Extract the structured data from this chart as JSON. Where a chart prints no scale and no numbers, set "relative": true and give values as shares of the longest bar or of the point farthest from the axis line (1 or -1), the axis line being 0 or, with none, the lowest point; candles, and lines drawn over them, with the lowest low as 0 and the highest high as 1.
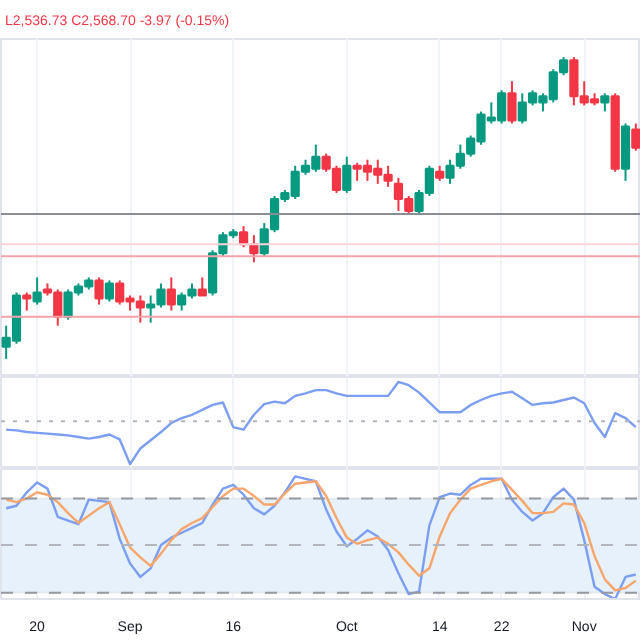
{
  "chart_data": [
    {
      "type": "candlestick",
      "relative": true,
      "title": "L2,536.73 C2,568.70 -3.97 (-0.15%)",
      "tick_labels": false,
      "grid": "x",
      "categories": [
        null,
        null,
        null,
        null,
        null,
        null,
        null,
        null,
        null,
        null,
        null,
        null,
        null,
        null,
        null,
        null,
        null,
        null,
        null,
        null,
        null,
        null,
        null,
        null,
        null,
        null,
        null,
        null,
        null,
        null,
        null,
        null,
        null,
        null,
        null,
        null,
        null,
        null,
        null,
        null,
        null,
        null,
        null,
        null,
        null,
        null,
        null,
        null,
        null,
        null,
        null,
        null,
        null,
        null,
        null,
        null,
        null,
        null,
        null,
        null,
        null,
        null
      ],
      "colors": [
        "#089981",
        "#089981",
        "#f23645",
        "#089981",
        "#f23645",
        "#f23645",
        "#089981",
        "#089981",
        "#089981",
        "#f23645",
        "#089981",
        "#f23645",
        "#f23645",
        "#f23645",
        "#089981",
        "#089981",
        "#f23645",
        "#089981",
        "#089981",
        "#f23645",
        "#089981",
        "#089981",
        "#089981",
        "#f23645",
        "#f23645",
        "#089981",
        "#089981",
        "#089981",
        "#089981",
        "#089981",
        "#089981",
        "#f23645",
        "#f23645",
        "#089981",
        "#f23645",
        "#f23645",
        "#f23645",
        "#f23645",
        "#f23645",
        "#f23645",
        "#089981",
        "#089981",
        "#f23645",
        "#089981",
        "#089981",
        "#089981",
        "#089981",
        "#089981",
        "#089981",
        "#f23645",
        "#089981",
        "#089981",
        "#089981",
        "#089981",
        "#089981",
        "#f23645",
        "#f23645",
        "#f23645",
        "#089981",
        "#f23645",
        "#089981",
        "#f23645"
      ],
      "ohlc": [
        [
          0.04,
          0.11,
          0,
          0.07
        ],
        [
          0.06,
          0.22,
          0.05,
          0.21
        ],
        [
          0.21,
          0.22,
          0.16,
          0.2
        ],
        [
          0.19,
          0.27,
          0.18,
          0.22
        ],
        [
          0.23,
          0.25,
          0.21,
          0.22
        ],
        [
          0.22,
          0.23,
          0.11,
          0.14
        ],
        [
          0.14,
          0.23,
          0.13,
          0.22
        ],
        [
          0.22,
          0.25,
          0.21,
          0.24
        ],
        [
          0.24,
          0.27,
          0.23,
          0.26
        ],
        [
          0.26,
          0.27,
          0.18,
          0.2
        ],
        [
          0.2,
          0.26,
          0.19,
          0.25
        ],
        [
          0.25,
          0.26,
          0.18,
          0.19
        ],
        [
          0.2,
          0.21,
          0.16,
          0.19
        ],
        [
          0.19,
          0.21,
          0.12,
          0.17
        ],
        [
          0.17,
          0.21,
          0.12,
          0.18
        ],
        [
          0.18,
          0.25,
          0.17,
          0.23
        ],
        [
          0.23,
          0.27,
          0.16,
          0.18
        ],
        [
          0.18,
          0.22,
          0.16,
          0.21
        ],
        [
          0.21,
          0.25,
          0.2,
          0.23
        ],
        [
          0.23,
          0.27,
          0.21,
          0.21
        ],
        [
          0.22,
          0.36,
          0.21,
          0.35
        ],
        [
          0.35,
          0.42,
          0.34,
          0.41
        ],
        [
          0.41,
          0.43,
          0.4,
          0.42
        ],
        [
          0.42,
          0.44,
          0.37,
          0.38
        ],
        [
          0.38,
          0.41,
          0.32,
          0.35
        ],
        [
          0.35,
          0.45,
          0.34,
          0.43
        ],
        [
          0.43,
          0.54,
          0.42,
          0.53
        ],
        [
          0.53,
          0.56,
          0.52,
          0.55
        ],
        [
          0.54,
          0.64,
          0.53,
          0.62
        ],
        [
          0.62,
          0.66,
          0.61,
          0.64
        ],
        [
          0.63,
          0.71,
          0.62,
          0.67
        ],
        [
          0.67,
          0.68,
          0.62,
          0.63
        ],
        [
          0.63,
          0.64,
          0.55,
          0.56
        ],
        [
          0.56,
          0.67,
          0.55,
          0.64
        ],
        [
          0.64,
          0.65,
          0.59,
          0.63
        ],
        [
          0.64,
          0.66,
          0.59,
          0.62
        ],
        [
          0.63,
          0.66,
          0.58,
          0.61
        ],
        [
          0.61,
          0.64,
          0.57,
          0.59
        ],
        [
          0.58,
          0.6,
          0.49,
          0.53
        ],
        [
          0.53,
          0.54,
          0.48,
          0.49
        ],
        [
          0.49,
          0.56,
          0.48,
          0.55
        ],
        [
          0.55,
          0.64,
          0.54,
          0.63
        ],
        [
          0.62,
          0.64,
          0.59,
          0.6
        ],
        [
          0.6,
          0.66,
          0.58,
          0.64
        ],
        [
          0.64,
          0.71,
          0.63,
          0.68
        ],
        [
          0.68,
          0.74,
          0.67,
          0.73
        ],
        [
          0.72,
          0.82,
          0.71,
          0.81
        ],
        [
          0.79,
          0.85,
          0.78,
          0.8
        ],
        [
          0.79,
          0.89,
          0.78,
          0.88
        ],
        [
          0.88,
          0.92,
          0.78,
          0.79
        ],
        [
          0.79,
          0.88,
          0.78,
          0.85
        ],
        [
          0.85,
          0.89,
          0.84,
          0.88
        ],
        [
          0.85,
          0.88,
          0.82,
          0.87
        ],
        [
          0.86,
          0.96,
          0.85,
          0.95
        ],
        [
          0.95,
          1.0,
          0.94,
          0.99
        ],
        [
          0.99,
          1.0,
          0.84,
          0.87
        ],
        [
          0.87,
          0.92,
          0.84,
          0.85
        ],
        [
          0.86,
          0.88,
          0.84,
          0.85
        ],
        [
          0.85,
          0.88,
          0.82,
          0.87
        ],
        [
          0.87,
          0.88,
          0.62,
          0.63
        ],
        [
          0.63,
          0.78,
          0.59,
          0.77
        ],
        [
          0.76,
          0.78,
          0.69,
          0.7
        ]
      ],
      "ref_lines": [
        {
          "axis": "y",
          "value": 0.48,
          "color": "#8a8d96"
        },
        {
          "axis": "y",
          "value": 0.38,
          "color": "#fbd3d6"
        },
        {
          "axis": "y",
          "value": 0.34,
          "color": "#f5a3aa"
        },
        {
          "axis": "y",
          "value": 0.14,
          "color": "#f5a3aa"
        }
      ]
    },
    {
      "type": "line",
      "relative": true,
      "tick_labels": false,
      "grid": "x",
      "categories": [
        null,
        null,
        null,
        null,
        null,
        null,
        null,
        null,
        null,
        null,
        null,
        null,
        null,
        null,
        null,
        null,
        null,
        null,
        null,
        null,
        null,
        null,
        null,
        null,
        null,
        null,
        null,
        null,
        null,
        null,
        null,
        null,
        null,
        null,
        null,
        null,
        null,
        null,
        null,
        null,
        null,
        null,
        null,
        null,
        null,
        null,
        null,
        null,
        null,
        null,
        null,
        null,
        null,
        null,
        null,
        null,
        null,
        null,
        null,
        null,
        null,
        null
      ],
      "series": [
        {
          "color": "#7b9ef2",
          "values": [
            0.42,
            0.41,
            0.39,
            0.38,
            0.37,
            0.36,
            0.35,
            0.33,
            0.31,
            0.33,
            0.36,
            0.3,
            0,
            0.19,
            0.29,
            0.39,
            0.5,
            0.56,
            0.6,
            0.66,
            0.72,
            0.75,
            0.45,
            0.42,
            0.6,
            0.73,
            0.76,
            0.74,
            0.83,
            0.86,
            0.9,
            0.9,
            0.86,
            0.83,
            0.83,
            0.83,
            0.83,
            0.83,
            1,
            0.96,
            0.87,
            0.75,
            0.63,
            0.63,
            0.63,
            0.72,
            0.78,
            0.83,
            0.86,
            0.88,
            0.8,
            0.72,
            0.74,
            0.75,
            0.78,
            0.81,
            0.74,
            0.5,
            0.33,
            0.62,
            0.56,
            0.45
          ]
        }
      ],
      "ref_lines": [
        {
          "axis": "y",
          "value": 0.52,
          "color": "#b2b5be",
          "line_style": "dotted"
        }
      ]
    },
    {
      "type": "line",
      "relative": true,
      "grid": "x",
      "categories": [
        null,
        null,
        null,
        "20",
        null,
        null,
        null,
        null,
        null,
        null,
        null,
        null,
        "Sep",
        null,
        null,
        null,
        null,
        null,
        null,
        null,
        null,
        null,
        "16",
        null,
        null,
        null,
        null,
        null,
        null,
        null,
        null,
        null,
        null,
        "Oct",
        null,
        null,
        null,
        null,
        null,
        null,
        null,
        null,
        "14",
        null,
        null,
        null,
        null,
        null,
        "22",
        null,
        null,
        null,
        null,
        null,
        null,
        null,
        "Nov",
        null,
        null,
        null,
        null,
        null
      ],
      "bands": [
        {
          "axis": "y",
          "from": 0.05,
          "to": 0.82,
          "color": "#e6f1fc"
        }
      ],
      "ref_lines": [
        {
          "axis": "y",
          "value": 0.82,
          "color": "#9598a1",
          "line_style": "dashed"
        },
        {
          "axis": "y",
          "value": 0.44,
          "color": "#b2b5be",
          "line_style": "dashed"
        },
        {
          "axis": "y",
          "value": 0.05,
          "color": "#9598a1",
          "line_style": "dashed"
        }
      ],
      "series": [
        {
          "color": "#7b9ef2",
          "values": [
            0.74,
            0.76,
            0.87,
            0.95,
            0.9,
            0.67,
            0.64,
            0.61,
            0.81,
            0.8,
            0.79,
            0.49,
            0.29,
            0.18,
            0.25,
            0.44,
            0.5,
            0.54,
            0.58,
            0.62,
            0.77,
            0.9,
            0.93,
            0.85,
            0.74,
            0.69,
            0.76,
            0.87,
            1,
            0.98,
            0.96,
            0.73,
            0.55,
            0.43,
            0.49,
            0.56,
            0.51,
            0.4,
            0.21,
            0.04,
            0.06,
            0.6,
            0.83,
            0.86,
            0.85,
            0.93,
            0.98,
            0.98,
            0.98,
            0.81,
            0.71,
            0.64,
            0.7,
            0.83,
            0.9,
            0.81,
            0.48,
            0.1,
            0.04,
            0,
            0.18,
            0.2
          ]
        },
        {
          "color": "#f7a56b",
          "values": [
            0.81,
            0.79,
            0.82,
            0.87,
            0.85,
            0.79,
            0.7,
            0.62,
            0.68,
            0.74,
            0.79,
            0.61,
            0.42,
            0.34,
            0.27,
            0.37,
            0.48,
            0.57,
            0.62,
            0.66,
            0.75,
            0.84,
            0.9,
            0.9,
            0.84,
            0.77,
            0.77,
            0.86,
            0.94,
            0.95,
            0.96,
            0.84,
            0.66,
            0.5,
            0.45,
            0.48,
            0.5,
            0.45,
            0.38,
            0.28,
            0.19,
            0.25,
            0.51,
            0.7,
            0.81,
            0.9,
            0.93,
            0.96,
            0.98,
            0.89,
            0.8,
            0.7,
            0.7,
            0.71,
            0.78,
            0.77,
            0.62,
            0.35,
            0.16,
            0.07,
            0.09,
            0.15
          ]
        }
      ]
    }
  ]
}
